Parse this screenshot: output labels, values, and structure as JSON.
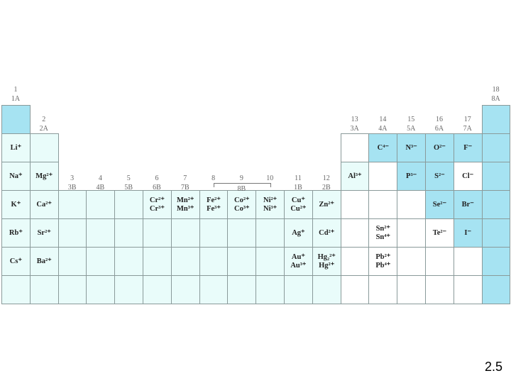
{
  "groups": [
    {
      "number": "1",
      "label": "1A"
    },
    {
      "number": "2",
      "label": "2A"
    },
    {
      "number": "3",
      "label": "3B"
    },
    {
      "number": "4",
      "label": "4B"
    },
    {
      "number": "5",
      "label": "5B"
    },
    {
      "number": "6",
      "label": "6B"
    },
    {
      "number": "7",
      "label": "7B"
    },
    {
      "number": "8",
      "label": null
    },
    {
      "number": "9",
      "label": "8B"
    },
    {
      "number": "10",
      "label": null
    },
    {
      "number": "11",
      "label": "1B"
    },
    {
      "number": "12",
      "label": "2B"
    },
    {
      "number": "13",
      "label": "3A"
    },
    {
      "number": "14",
      "label": "4A"
    },
    {
      "number": "15",
      "label": "5A"
    },
    {
      "number": "16",
      "label": "6A"
    },
    {
      "number": "17",
      "label": "7A"
    },
    {
      "number": "18",
      "label": "8A"
    }
  ],
  "table": {
    "rows": [
      [
        null,
        null,
        null,
        null,
        null,
        null,
        null,
        null,
        null,
        null,
        null,
        null,
        null,
        null,
        null,
        null,
        null,
        null
      ],
      [
        [
          "Li⁺"
        ],
        null,
        null,
        null,
        null,
        null,
        null,
        null,
        null,
        null,
        null,
        null,
        null,
        [
          "C⁴⁻"
        ],
        [
          "N³⁻"
        ],
        [
          "O²⁻"
        ],
        [
          "F⁻"
        ],
        null
      ],
      [
        [
          "Na⁺"
        ],
        [
          "Mg²⁺"
        ],
        null,
        null,
        null,
        null,
        null,
        null,
        null,
        null,
        null,
        null,
        [
          "Al³⁺"
        ],
        null,
        [
          "P³⁻"
        ],
        [
          "S²⁻"
        ],
        [
          "Cl⁻"
        ],
        null
      ],
      [
        [
          "K⁺"
        ],
        [
          "Ca²⁺"
        ],
        null,
        null,
        null,
        [
          "Cr²⁺",
          "Cr³⁺"
        ],
        [
          "Mn²⁺",
          "Mn³⁺"
        ],
        [
          "Fe²⁺",
          "Fe³⁺"
        ],
        [
          "Co²⁺",
          "Co³⁺"
        ],
        [
          "Ni²⁺",
          "Ni³⁺"
        ],
        [
          "Cu⁺",
          "Cu²⁺"
        ],
        [
          "Zn²⁺"
        ],
        null,
        null,
        null,
        [
          "Se²⁻"
        ],
        [
          "Br⁻"
        ],
        null
      ],
      [
        [
          "Rb⁺"
        ],
        [
          "Sr²⁺"
        ],
        null,
        null,
        null,
        null,
        null,
        null,
        null,
        null,
        [
          "Ag⁺"
        ],
        [
          "Cd²⁺"
        ],
        null,
        [
          "Sn²⁺",
          "Sn⁴⁺"
        ],
        null,
        [
          "Te²⁻"
        ],
        [
          "I⁻"
        ],
        null
      ],
      [
        [
          "Cs⁺"
        ],
        [
          "Ba²⁺"
        ],
        null,
        null,
        null,
        null,
        null,
        null,
        null,
        null,
        [
          "Au⁺",
          "Au³⁺"
        ],
        [
          "Hg₂²⁺",
          "Hg²⁺"
        ],
        null,
        [
          "Pb²⁺",
          "Pb⁴⁺"
        ],
        null,
        null,
        null,
        null
      ],
      [
        null,
        null,
        null,
        null,
        null,
        null,
        null,
        null,
        null,
        null,
        null,
        null,
        null,
        null,
        null,
        null,
        null,
        null
      ]
    ]
  },
  "footer": "2.5"
}
